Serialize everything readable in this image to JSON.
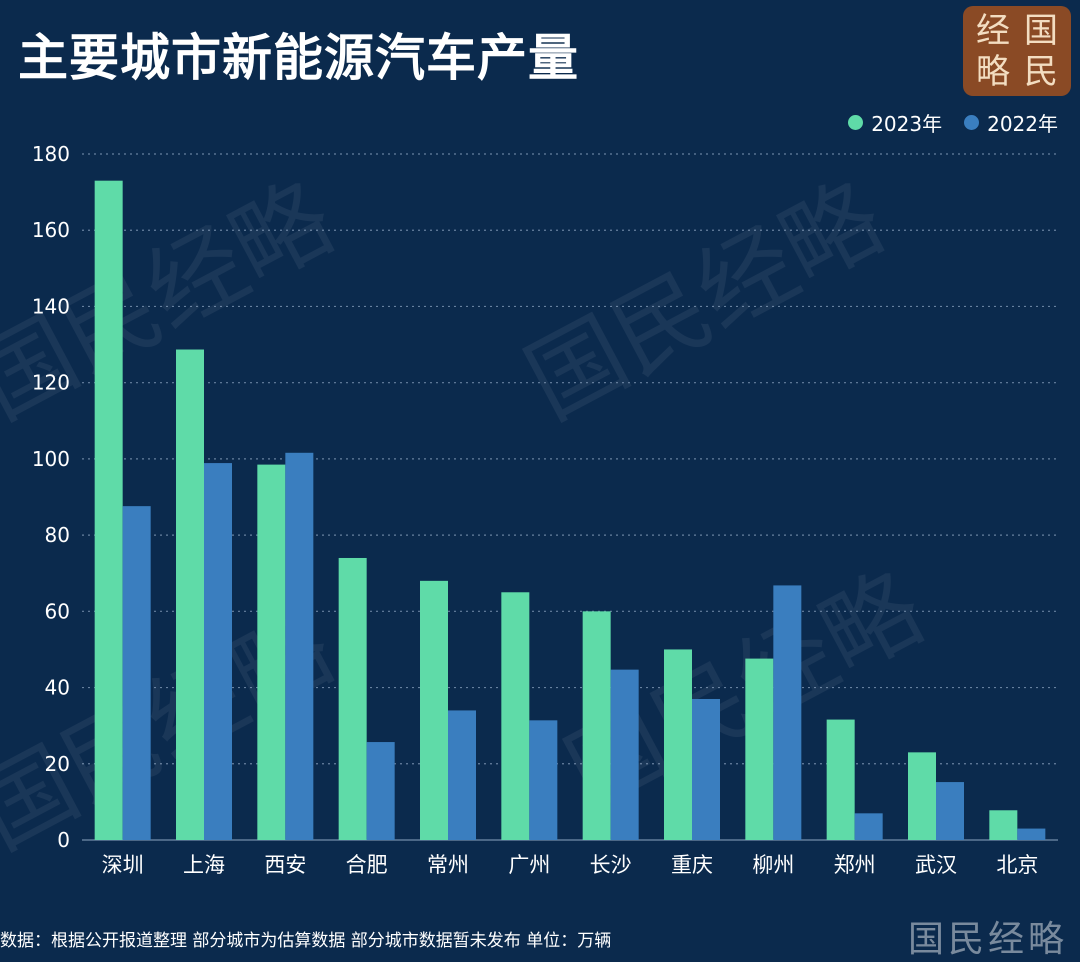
{
  "title": "主要城市新能源汽车产量",
  "logo": {
    "chars": [
      "经",
      "国",
      "略",
      "民"
    ]
  },
  "colors": {
    "background": "#0b2a4d",
    "series_2023": "#5fdba8",
    "series_2022": "#3a7ebf",
    "grid": "#8fa6c2"
  },
  "watermark": "国民经略",
  "footer": {
    "note": "数据：根据公开报道整理 部分城市为估算数据 部分城市数据暂未发布 单位：万辆",
    "brand": "国民经略"
  },
  "chart_data": {
    "type": "bar",
    "categories": [
      "深圳",
      "上海",
      "西安",
      "合肥",
      "常州",
      "广州",
      "长沙",
      "重庆",
      "柳州",
      "郑州",
      "武汉",
      "北京"
    ],
    "series": [
      {
        "name": "2023年",
        "values": [
          173,
          128.7,
          98.5,
          74,
          68,
          65,
          60,
          50,
          47.6,
          31.6,
          23,
          7.8
        ]
      },
      {
        "name": "2022年",
        "values": [
          87.6,
          98.9,
          101.6,
          25.7,
          34,
          31.4,
          44.7,
          37,
          66.8,
          7,
          15.2,
          3
        ]
      }
    ],
    "ylim": [
      0,
      180
    ],
    "yticks": [
      "0",
      "20",
      "40",
      "60",
      "80",
      "100",
      "120",
      "140",
      "160",
      "180"
    ],
    "grid": true,
    "legend": "top-right"
  }
}
